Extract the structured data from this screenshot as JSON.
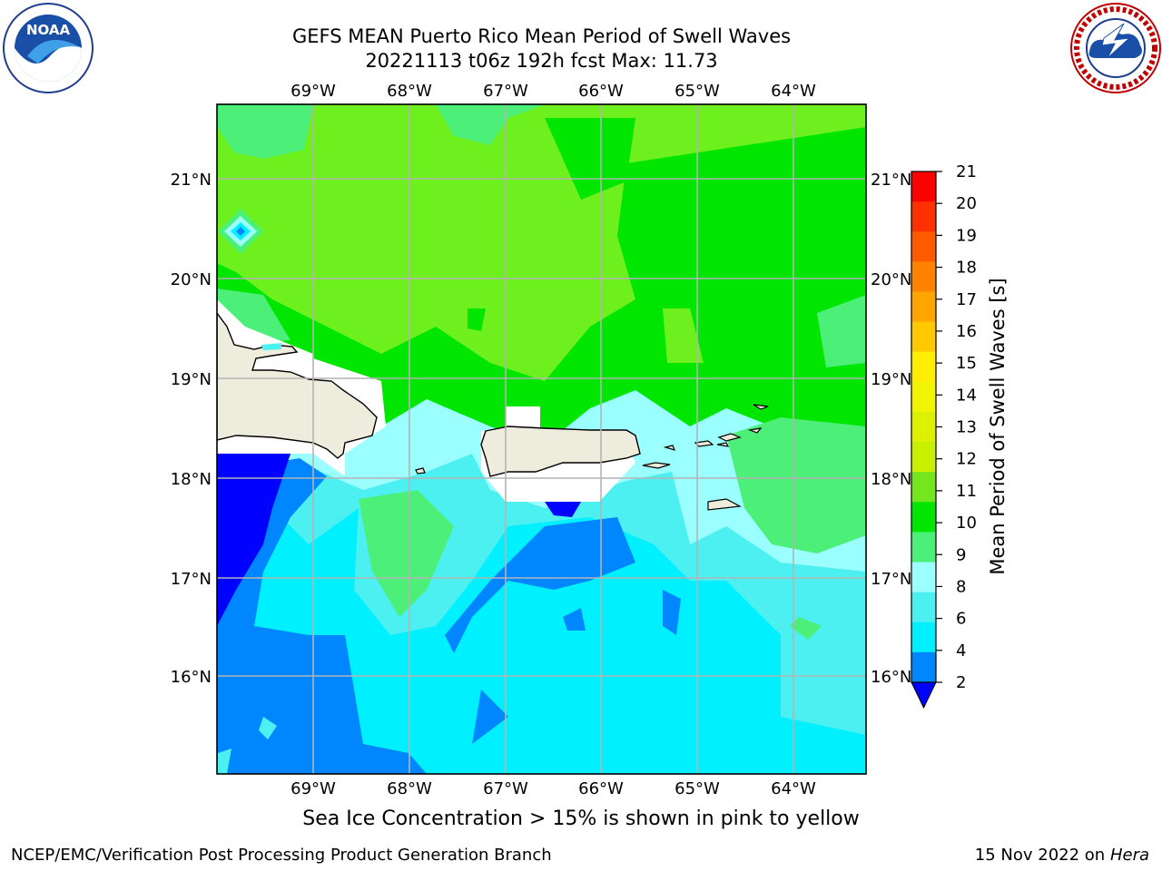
{
  "header": {
    "title_line1": "GEFS MEAN Puerto Rico Mean Period of Swell Waves",
    "title_line2": "20221113 t06z 192h fcst   Max: 11.73"
  },
  "logos": {
    "left": {
      "icon": "noaa-logo",
      "text": "NOAA",
      "ring_text": "NATIONAL OCEANIC AND ATMOSPHERIC ADMINISTRATION · U.S. DEPARTMENT OF COMMERCE"
    },
    "right": {
      "icon": "nws-logo",
      "ring_text": "NATIONAL WEATHER SERVICE"
    }
  },
  "map": {
    "lon_labels": [
      "69°W",
      "68°W",
      "67°W",
      "66°W",
      "65°W",
      "64°W"
    ],
    "lat_labels": [
      "21°N",
      "20°N",
      "19°N",
      "18°N",
      "17°N",
      "16°N"
    ]
  },
  "colorbar": {
    "label": "Mean Period of Swell Waves [s]",
    "ticks": [
      "21",
      "20",
      "19",
      "18",
      "17",
      "16",
      "15",
      "14",
      "13",
      "12",
      "11",
      "10",
      "9",
      "8",
      "6",
      "4",
      "2"
    ],
    "colors": [
      "#ff0000",
      "#ff3000",
      "#ff5a00",
      "#ff8200",
      "#ffa500",
      "#ffc800",
      "#ffee00",
      "#f2f500",
      "#dcf000",
      "#c8f000",
      "#73e61e",
      "#00e600",
      "#4cf078",
      "#9bffff",
      "#4cf0f0",
      "#00f0ff",
      "#0087ff",
      "#0000ff"
    ]
  },
  "subtitle": "Sea Ice Concentration > 15% is shown in pink to yellow",
  "footer": {
    "left": "NCEP/EMC/Verification Post Processing Product Generation Branch",
    "right_date": "15 Nov 2022 on",
    "right_machine": "Hera"
  },
  "colors": {
    "land": "#eeecdc",
    "grid": "#b4b4b4",
    "coast": "#000000"
  }
}
